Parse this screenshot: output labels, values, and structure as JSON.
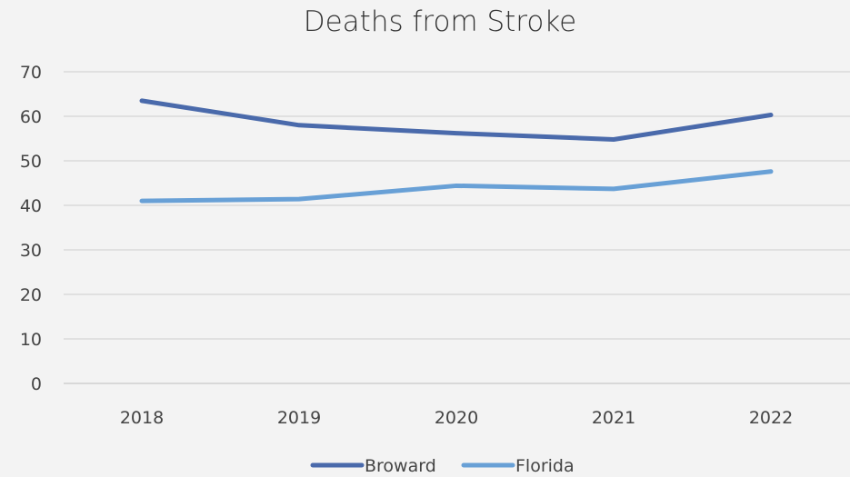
{
  "chart_data": {
    "type": "line",
    "title": "Deaths from Stroke",
    "categories": [
      "2018",
      "2019",
      "2020",
      "2021",
      "2022"
    ],
    "series": [
      {
        "name": "Broward",
        "values": [
          63.5,
          58.0,
          56.2,
          54.8,
          60.3
        ],
        "color": "#4a6aab"
      },
      {
        "name": "Florida",
        "values": [
          41.0,
          41.4,
          44.4,
          43.7,
          47.6
        ],
        "color": "#68a0d6"
      }
    ],
    "y_ticks": [
      "0",
      "10",
      "20",
      "30",
      "40",
      "50",
      "60",
      "70"
    ],
    "ylim": [
      0,
      70
    ],
    "grid": true,
    "legend": "bottom-center"
  }
}
